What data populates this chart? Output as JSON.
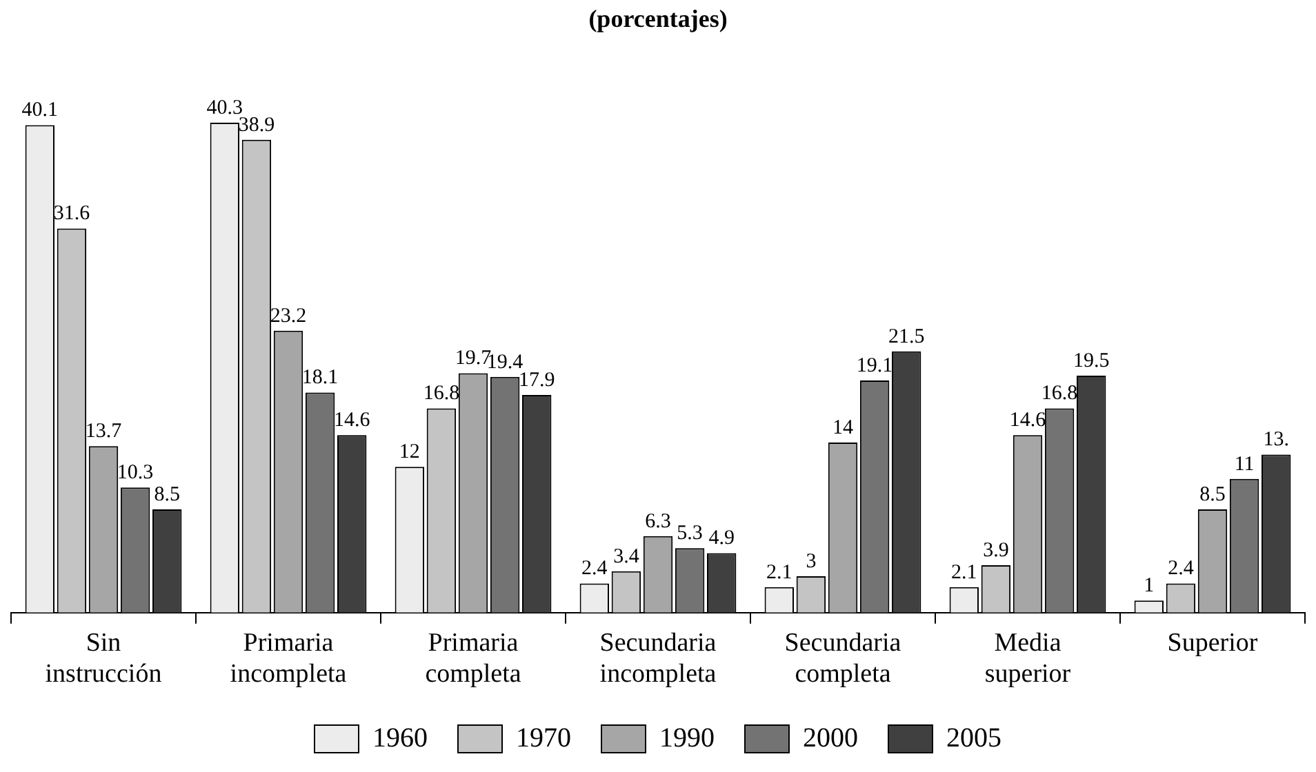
{
  "chart_data": {
    "type": "bar",
    "title": "(porcentajes)",
    "categories": [
      "Sin instrucción",
      "Primaria incompleta",
      "Primaria completa",
      "Secundaria incompleta",
      "Secundaria completa",
      "Media superior",
      "Superior"
    ],
    "series": [
      {
        "name": "1960",
        "color": "#ececec",
        "values": [
          40.1,
          40.3,
          12,
          2.4,
          2.1,
          2.1,
          1
        ]
      },
      {
        "name": "1970",
        "color": "#c4c4c4",
        "values": [
          31.6,
          38.9,
          16.8,
          3.4,
          3,
          3.9,
          2.4
        ]
      },
      {
        "name": "1990",
        "color": "#a6a6a6",
        "values": [
          13.7,
          23.2,
          19.7,
          6.3,
          14,
          14.6,
          8.5
        ]
      },
      {
        "name": "2000",
        "color": "#737373",
        "values": [
          10.3,
          18.1,
          19.4,
          5.3,
          19.1,
          16.8,
          11
        ]
      },
      {
        "name": "2005",
        "color": "#404040",
        "values": [
          8.5,
          14.6,
          17.9,
          4.9,
          21.5,
          19.5,
          13
        ],
        "value_labels": [
          "8.5",
          "14.6",
          "17.9",
          "4.9",
          "21.5",
          "19.5",
          "13."
        ]
      }
    ],
    "data_labels": true,
    "legend": "bottom",
    "grid": false
  }
}
